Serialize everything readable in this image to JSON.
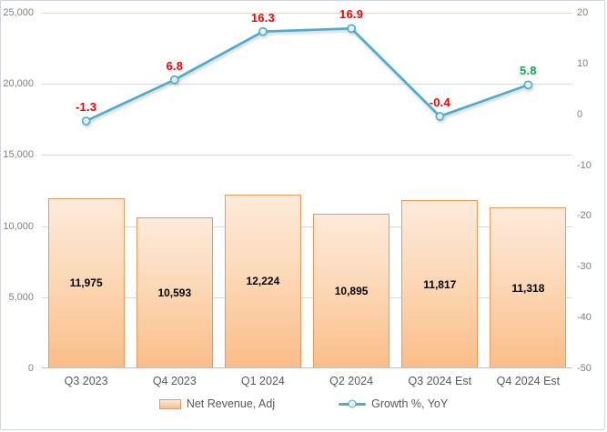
{
  "chart_data": {
    "type": "combo-bar-line",
    "title": "",
    "categories": [
      "Q3 2023",
      "Q4 2023",
      "Q1 2024",
      "Q2 2024",
      "Q3 2024 Est",
      "Q4 2024 Est"
    ],
    "series": [
      {
        "name": "Net Revenue, Adj",
        "type": "bar",
        "axis": "left",
        "values": [
          11975,
          10593,
          12224,
          10895,
          11817,
          11318
        ],
        "labels": [
          "11,975",
          "10,593",
          "12,224",
          "10,895",
          "11,817",
          "11,318"
        ]
      },
      {
        "name": "Growth %, YoY",
        "type": "line",
        "axis": "right",
        "values": [
          -1.3,
          6.8,
          16.3,
          16.9,
          -0.4,
          5.8
        ],
        "labels": [
          "-1.3",
          "6.8",
          "16.3",
          "16.9",
          "-0.4",
          "5.8"
        ],
        "label_colors": [
          "#FF0000",
          "#FF0000",
          "#FF0000",
          "#FF0000",
          "#FF0000",
          "#00B050"
        ]
      }
    ],
    "axes": {
      "left": {
        "min": 0,
        "max": 25000,
        "step": 5000,
        "tick_labels": [
          "0",
          "5,000",
          "10,000",
          "15,000",
          "20,000",
          "25,000"
        ]
      },
      "right": {
        "min": -50,
        "max": 20,
        "step": 10,
        "tick_labels": [
          "-50",
          "-40",
          "-30",
          "-20",
          "-10",
          "0",
          "10",
          "20"
        ]
      }
    },
    "grid": true,
    "legend_position": "bottom"
  },
  "colors": {
    "bar_fill_top": "#FDEADB",
    "bar_fill_bottom": "#FBBD88",
    "bar_border": "#E39C5B",
    "line": "#4BACCB",
    "marker_fill": "#E3F2F8",
    "marker_border": "#4BACCB",
    "grid": "#D9D9D9",
    "axis_line": "#BFBFBF",
    "tick_text": "#808080",
    "category_text": "#595959",
    "legend_text": "#595959",
    "bar_label_text": "#000000"
  }
}
